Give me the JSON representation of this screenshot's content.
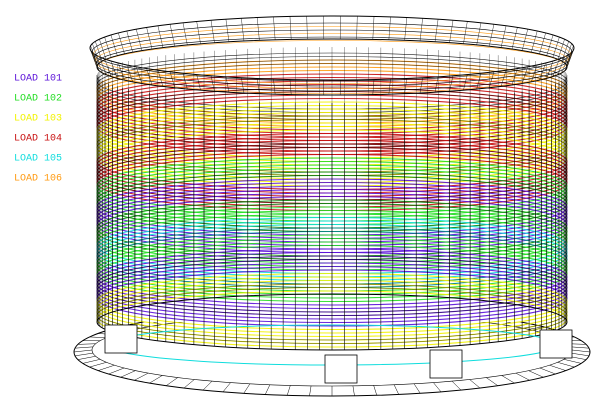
{
  "legend": {
    "items": [
      {
        "label": "LOAD 101",
        "color": "#5a10d8"
      },
      {
        "label": "LOAD 102",
        "color": "#22dd22"
      },
      {
        "label": "LOAD 103",
        "color": "#f2f200"
      },
      {
        "label": "LOAD 104",
        "color": "#c81010"
      },
      {
        "label": "LOAD 105",
        "color": "#10dddd"
      },
      {
        "label": "LOAD 106",
        "color": "#ff9a10"
      }
    ]
  }
}
